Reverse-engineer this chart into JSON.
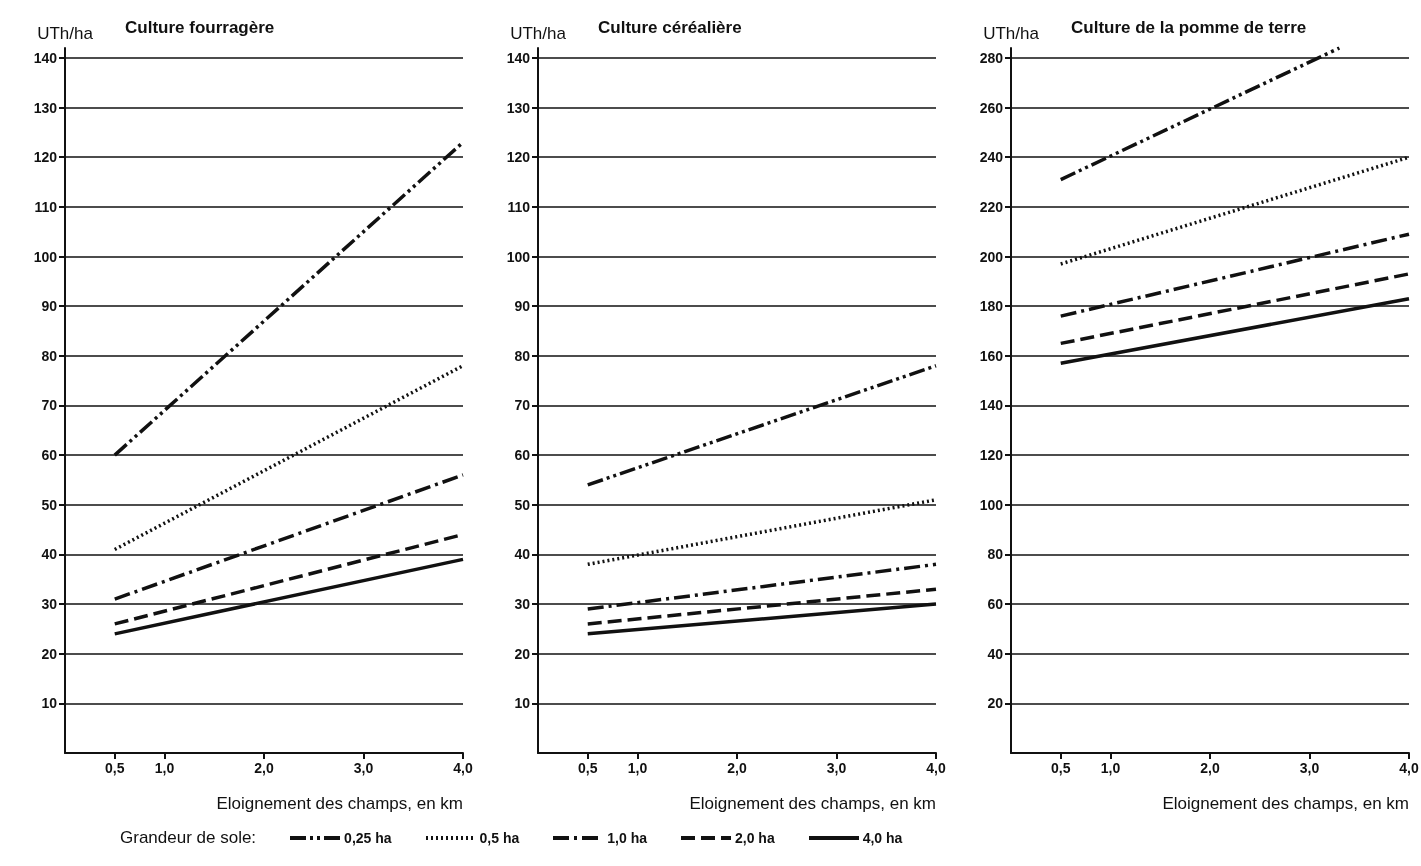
{
  "chart_data": [
    {
      "type": "line",
      "title": "Culture fourragère",
      "ylabel": "UTh/ha",
      "xlabel": "Eloignement des champs, en km",
      "legend_title": "Grandeur de sole:",
      "legend": "bottom",
      "grid": "y",
      "marker": "none",
      "xlim": [
        0,
        4
      ],
      "xticks": [
        {
          "value": 0.5,
          "label": "0,5"
        },
        {
          "value": 1,
          "label": "1,0"
        },
        {
          "value": 2,
          "label": "2,0"
        },
        {
          "value": 3,
          "label": "3,0"
        },
        {
          "value": 4,
          "label": "4,0"
        }
      ],
      "ylim": [
        0,
        142
      ],
      "yticks": [
        10,
        20,
        30,
        40,
        50,
        60,
        70,
        80,
        90,
        100,
        110,
        120,
        130,
        140
      ],
      "series": [
        {
          "name": "0,25 ha",
          "color": "#111111",
          "line_style": "dashdotdot",
          "x": [
            0.5,
            4
          ],
          "values": [
            60,
            123
          ]
        },
        {
          "name": "0,5 ha",
          "color": "#111111",
          "line_style": "dotted",
          "x": [
            0.5,
            4
          ],
          "values": [
            41,
            78
          ]
        },
        {
          "name": "1,0 ha",
          "color": "#111111",
          "line_style": "dashdot",
          "x": [
            0.5,
            4
          ],
          "values": [
            31,
            56
          ]
        },
        {
          "name": "2,0 ha",
          "color": "#111111",
          "line_style": "dashed",
          "x": [
            0.5,
            4
          ],
          "values": [
            26,
            44
          ]
        },
        {
          "name": "4,0 ha",
          "color": "#111111",
          "line_style": "solid",
          "x": [
            0.5,
            4
          ],
          "values": [
            24,
            39
          ]
        }
      ]
    },
    {
      "type": "line",
      "title": "Culture céréalière",
      "ylabel": "UTh/ha",
      "xlabel": "Eloignement des champs, en km",
      "grid": "y",
      "marker": "none",
      "xlim": [
        0,
        4
      ],
      "xticks": [
        {
          "value": 0.5,
          "label": "0,5"
        },
        {
          "value": 1,
          "label": "1,0"
        },
        {
          "value": 2,
          "label": "2,0"
        },
        {
          "value": 3,
          "label": "3,0"
        },
        {
          "value": 4,
          "label": "4,0"
        }
      ],
      "ylim": [
        0,
        142
      ],
      "yticks": [
        10,
        20,
        30,
        40,
        50,
        60,
        70,
        80,
        90,
        100,
        110,
        120,
        130,
        140
      ],
      "series": [
        {
          "color": "#111111",
          "line_style": "dashdotdot",
          "x": [
            0.5,
            4
          ],
          "values": [
            54,
            78
          ]
        },
        {
          "color": "#111111",
          "line_style": "dotted",
          "x": [
            0.5,
            4
          ],
          "values": [
            38,
            51
          ]
        },
        {
          "color": "#111111",
          "line_style": "dashdot",
          "x": [
            0.5,
            4
          ],
          "values": [
            29,
            38
          ]
        },
        {
          "color": "#111111",
          "line_style": "dashed",
          "x": [
            0.5,
            4
          ],
          "values": [
            26,
            33
          ]
        },
        {
          "color": "#111111",
          "line_style": "solid",
          "x": [
            0.5,
            4
          ],
          "values": [
            24,
            30
          ]
        }
      ]
    },
    {
      "type": "line",
      "title": "Culture de la pomme de terre",
      "ylabel": "UTh/ha",
      "xlabel": "Eloignement des champs, en km",
      "grid": "y",
      "marker": "none",
      "xlim": [
        0,
        4
      ],
      "xticks": [
        {
          "value": 0.5,
          "label": "0,5"
        },
        {
          "value": 1,
          "label": "1,0"
        },
        {
          "value": 2,
          "label": "2,0"
        },
        {
          "value": 3,
          "label": "3,0"
        },
        {
          "value": 4,
          "label": "4,0"
        }
      ],
      "ylim": [
        0,
        284
      ],
      "yticks": [
        20,
        40,
        60,
        80,
        100,
        120,
        140,
        160,
        180,
        200,
        220,
        240,
        260,
        280
      ],
      "series": [
        {
          "color": "#111111",
          "line_style": "dashdotdot",
          "x": [
            0.5,
            3.3
          ],
          "values": [
            231,
            284
          ]
        },
        {
          "color": "#111111",
          "line_style": "dotted",
          "x": [
            0.5,
            4
          ],
          "values": [
            197,
            240
          ]
        },
        {
          "color": "#111111",
          "line_style": "dashdot",
          "x": [
            0.5,
            4
          ],
          "values": [
            176,
            209
          ]
        },
        {
          "color": "#111111",
          "line_style": "dashed",
          "x": [
            0.5,
            4
          ],
          "values": [
            165,
            193
          ]
        },
        {
          "color": "#111111",
          "line_style": "solid",
          "x": [
            0.5,
            4
          ],
          "values": [
            157,
            183
          ]
        }
      ]
    }
  ]
}
